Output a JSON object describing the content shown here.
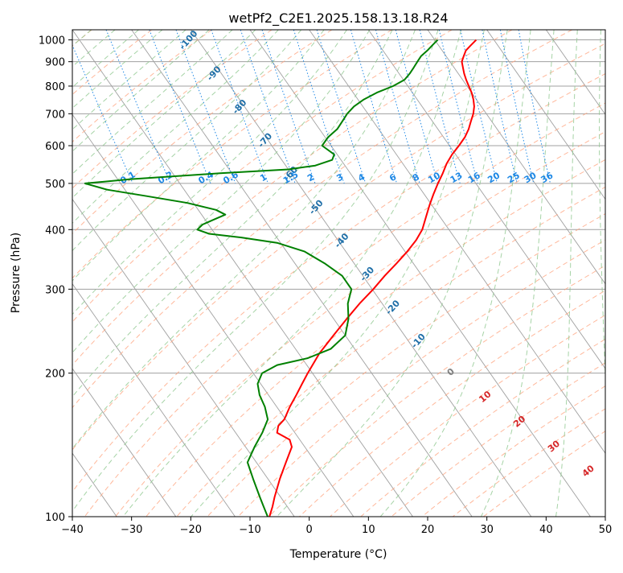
{
  "chart_data": {
    "type": "line",
    "subtype": "skew-t log-p",
    "title": "wetPf2_C2E1.2025.158.13.18.R24",
    "xlabel": "Temperature (°C)",
    "ylabel": "Pressure (hPa)",
    "xlim": [
      -40,
      50
    ],
    "ylim": [
      1050,
      100
    ],
    "y_scale": "log",
    "grid": true,
    "x_ticks": [
      -40,
      -30,
      -20,
      -10,
      0,
      10,
      20,
      30,
      40,
      50
    ],
    "x_tick_labels": [
      "−40",
      "−30",
      "−20",
      "−10",
      "0",
      "10",
      "20",
      "30",
      "40",
      "50"
    ],
    "y_ticks": [
      1000,
      900,
      800,
      700,
      600,
      500,
      400,
      300,
      200,
      100
    ],
    "y_tick_labels": [
      "1000",
      "900",
      "800",
      "700",
      "600",
      "500",
      "400",
      "300",
      "200",
      "100"
    ],
    "series": [
      {
        "role": "temperature",
        "color": "#ff0000",
        "points": [
          {
            "p": 1000,
            "t": 27.0
          },
          {
            "p": 975,
            "t": 25.5
          },
          {
            "p": 950,
            "t": 24.0
          },
          {
            "p": 925,
            "t": 23.0
          },
          {
            "p": 900,
            "t": 22.0
          },
          {
            "p": 875,
            "t": 21.5
          },
          {
            "p": 850,
            "t": 21.0
          },
          {
            "p": 825,
            "t": 20.6
          },
          {
            "p": 800,
            "t": 20.3
          },
          {
            "p": 775,
            "t": 20.0
          },
          {
            "p": 750,
            "t": 19.5
          },
          {
            "p": 725,
            "t": 18.8
          },
          {
            "p": 700,
            "t": 17.8
          },
          {
            "p": 675,
            "t": 16.5
          },
          {
            "p": 650,
            "t": 15.2
          },
          {
            "p": 625,
            "t": 13.6
          },
          {
            "p": 600,
            "t": 11.6
          },
          {
            "p": 575,
            "t": 9.4
          },
          {
            "p": 550,
            "t": 7.4
          },
          {
            "p": 525,
            "t": 5.6
          },
          {
            "p": 500,
            "t": 3.6
          },
          {
            "p": 475,
            "t": 1.6
          },
          {
            "p": 450,
            "t": -0.4
          },
          {
            "p": 425,
            "t": -2.4
          },
          {
            "p": 400,
            "t": -4.5
          },
          {
            "p": 380,
            "t": -6.8
          },
          {
            "p": 360,
            "t": -9.6
          },
          {
            "p": 340,
            "t": -12.8
          },
          {
            "p": 320,
            "t": -16.3
          },
          {
            "p": 300,
            "t": -19.8
          },
          {
            "p": 280,
            "t": -23.8
          },
          {
            "p": 260,
            "t": -27.8
          },
          {
            "p": 240,
            "t": -32.0
          },
          {
            "p": 220,
            "t": -36.5
          },
          {
            "p": 200,
            "t": -40.8
          },
          {
            "p": 190,
            "t": -43.0
          },
          {
            "p": 180,
            "t": -45.3
          },
          {
            "p": 170,
            "t": -47.8
          },
          {
            "p": 160,
            "t": -50.2
          },
          {
            "p": 155,
            "t": -52.0
          },
          {
            "p": 150,
            "t": -53.0
          },
          {
            "p": 145,
            "t": -51.7
          },
          {
            "p": 140,
            "t": -52.2
          },
          {
            "p": 130,
            "t": -55.0
          },
          {
            "p": 120,
            "t": -58.0
          },
          {
            "p": 110,
            "t": -61.0
          },
          {
            "p": 105,
            "t": -62.5
          },
          {
            "p": 100,
            "t": -64.2
          }
        ]
      },
      {
        "role": "dewpoint",
        "color": "#008000",
        "points": [
          {
            "p": 1000,
            "t": 20.5
          },
          {
            "p": 975,
            "t": 19.0
          },
          {
            "p": 950,
            "t": 17.5
          },
          {
            "p": 925,
            "t": 15.8
          },
          {
            "p": 900,
            "t": 14.5
          },
          {
            "p": 875,
            "t": 13.2
          },
          {
            "p": 850,
            "t": 11.8
          },
          {
            "p": 825,
            "t": 10.2
          },
          {
            "p": 800,
            "t": 7.5
          },
          {
            "p": 775,
            "t": 4.0
          },
          {
            "p": 750,
            "t": 1.0
          },
          {
            "p": 725,
            "t": -1.5
          },
          {
            "p": 700,
            "t": -3.5
          },
          {
            "p": 675,
            "t": -5.2
          },
          {
            "p": 650,
            "t": -7.0
          },
          {
            "p": 625,
            "t": -9.5
          },
          {
            "p": 600,
            "t": -11.5
          },
          {
            "p": 575,
            "t": -10.5
          },
          {
            "p": 560,
            "t": -11.5
          },
          {
            "p": 545,
            "t": -15.0
          },
          {
            "p": 535,
            "t": -20.0
          },
          {
            "p": 525,
            "t": -32.0
          },
          {
            "p": 510,
            "t": -48.0
          },
          {
            "p": 500,
            "t": -56.0
          },
          {
            "p": 485,
            "t": -53.0
          },
          {
            "p": 470,
            "t": -47.0
          },
          {
            "p": 455,
            "t": -41.0
          },
          {
            "p": 440,
            "t": -37.0
          },
          {
            "p": 430,
            "t": -36.0
          },
          {
            "p": 420,
            "t": -38.5
          },
          {
            "p": 410,
            "t": -41.0
          },
          {
            "p": 400,
            "t": -42.5
          },
          {
            "p": 392,
            "t": -41.0
          },
          {
            "p": 385,
            "t": -36.0
          },
          {
            "p": 375,
            "t": -30.5
          },
          {
            "p": 360,
            "t": -27.0
          },
          {
            "p": 340,
            "t": -25.0
          },
          {
            "p": 320,
            "t": -23.5
          },
          {
            "p": 300,
            "t": -23.5
          },
          {
            "p": 280,
            "t": -25.8
          },
          {
            "p": 260,
            "t": -27.5
          },
          {
            "p": 240,
            "t": -30.0
          },
          {
            "p": 225,
            "t": -34.0
          },
          {
            "p": 215,
            "t": -39.0
          },
          {
            "p": 208,
            "t": -45.0
          },
          {
            "p": 200,
            "t": -48.5
          },
          {
            "p": 190,
            "t": -50.5
          },
          {
            "p": 180,
            "t": -51.5
          },
          {
            "p": 170,
            "t": -52.0
          },
          {
            "p": 160,
            "t": -53.0
          },
          {
            "p": 150,
            "t": -55.5
          },
          {
            "p": 140,
            "t": -58.5
          },
          {
            "p": 130,
            "t": -61.5
          },
          {
            "p": 120,
            "t": -62.5
          },
          {
            "p": 110,
            "t": -63.5
          },
          {
            "p": 105,
            "t": -64.0
          },
          {
            "p": 100,
            "t": -64.5
          }
        ]
      }
    ],
    "dry_adiabat_labels": [
      "-100",
      "-90",
      "-80",
      "-70",
      "-60",
      "-50",
      "-40",
      "-30",
      "-20",
      "-10"
    ],
    "dry_adiabat_label_values": [
      -100,
      -90,
      -80,
      -70,
      -60,
      -50,
      -40,
      -30,
      -20,
      -10
    ],
    "moist_adiabat_labels": [
      "0",
      "10",
      "20",
      "30",
      "40"
    ],
    "moist_adiabat_label_values": [
      0,
      10,
      20,
      30,
      40
    ],
    "mixing_ratio_labels": [
      "0.1",
      "0.2",
      "0.4",
      "0.6",
      "1",
      "1.5",
      "2",
      "3",
      "4",
      "6",
      "8",
      "10",
      "13",
      "16",
      "20",
      "25",
      "30",
      "36"
    ],
    "mixing_ratio_values": [
      0.1,
      0.2,
      0.4,
      0.6,
      1,
      1.5,
      2,
      3,
      4,
      6,
      8,
      10,
      13,
      16,
      20,
      25,
      30,
      36
    ],
    "colors": {
      "temperature": "#ff0000",
      "dewpoint": "#008000",
      "dry_adiabat": "#ffa07a",
      "moist_adiabat": "#90c890",
      "mixing_ratio": "#1e88e5",
      "isotherm": "#a0a0a0",
      "dry_label": "#1f6fa8",
      "moist_label": "#d62728",
      "mixing_label": "#1e88e5"
    }
  }
}
